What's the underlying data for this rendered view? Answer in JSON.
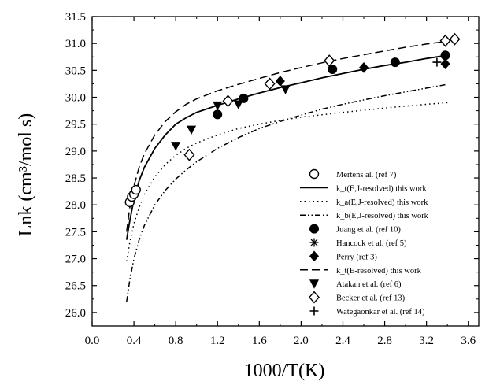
{
  "chart_data": {
    "type": "scatter",
    "xlabel": "1000/T(K)",
    "ylabel": "Lnk (cm³/mol s)",
    "xlim": [
      0.0,
      3.7
    ],
    "ylim": [
      25.75,
      31.5
    ],
    "xticks": [
      "0.0",
      "0.4",
      "0.8",
      "1.2",
      "1.6",
      "2.0",
      "2.4",
      "2.8",
      "3.2",
      "3.6"
    ],
    "yticks": [
      "26.0",
      "26.5",
      "27.0",
      "27.5",
      "28.0",
      "28.5",
      "29.0",
      "29.5",
      "30.0",
      "30.5",
      "31.0",
      "31.5"
    ],
    "legend_position": "center-right",
    "series": [
      {
        "name": "Mertens al. (ref 7)",
        "kind": "points",
        "marker": "open-circle",
        "points": [
          [
            0.36,
            28.05
          ],
          [
            0.38,
            28.15
          ],
          [
            0.4,
            28.2
          ],
          [
            0.42,
            28.28
          ]
        ]
      },
      {
        "name": "k_t(E,J-resolved)  this work",
        "kind": "line",
        "dash": "solid",
        "points": [
          [
            0.33,
            27.35
          ],
          [
            0.36,
            27.7
          ],
          [
            0.4,
            28.1
          ],
          [
            0.45,
            28.45
          ],
          [
            0.5,
            28.7
          ],
          [
            0.6,
            29.05
          ],
          [
            0.7,
            29.3
          ],
          [
            0.8,
            29.5
          ],
          [
            0.9,
            29.62
          ],
          [
            1.0,
            29.72
          ],
          [
            1.2,
            29.85
          ],
          [
            1.4,
            29.97
          ],
          [
            1.6,
            30.08
          ],
          [
            1.8,
            30.18
          ],
          [
            2.0,
            30.27
          ],
          [
            2.2,
            30.36
          ],
          [
            2.4,
            30.44
          ],
          [
            2.6,
            30.52
          ],
          [
            2.8,
            30.59
          ],
          [
            3.0,
            30.65
          ],
          [
            3.2,
            30.72
          ],
          [
            3.4,
            30.78
          ]
        ]
      },
      {
        "name": "k_a(E,J-resolved)  this work",
        "kind": "line",
        "dash": "dotted",
        "points": [
          [
            0.33,
            26.95
          ],
          [
            0.36,
            27.3
          ],
          [
            0.4,
            27.65
          ],
          [
            0.45,
            27.95
          ],
          [
            0.5,
            28.2
          ],
          [
            0.6,
            28.52
          ],
          [
            0.7,
            28.75
          ],
          [
            0.8,
            28.92
          ],
          [
            0.9,
            29.05
          ],
          [
            1.0,
            29.15
          ],
          [
            1.2,
            29.3
          ],
          [
            1.4,
            29.42
          ],
          [
            1.6,
            29.5
          ],
          [
            1.8,
            29.57
          ],
          [
            2.0,
            29.63
          ],
          [
            2.4,
            29.72
          ],
          [
            2.8,
            29.8
          ],
          [
            3.2,
            29.87
          ],
          [
            3.4,
            29.9
          ]
        ]
      },
      {
        "name": "k_b(E,J-resolved)  this work",
        "kind": "line",
        "dash": "dash-dot-dot",
        "points": [
          [
            0.33,
            26.2
          ],
          [
            0.36,
            26.6
          ],
          [
            0.4,
            27.0
          ],
          [
            0.45,
            27.35
          ],
          [
            0.5,
            27.62
          ],
          [
            0.6,
            28.0
          ],
          [
            0.7,
            28.27
          ],
          [
            0.8,
            28.48
          ],
          [
            0.9,
            28.65
          ],
          [
            1.0,
            28.8
          ],
          [
            1.2,
            29.05
          ],
          [
            1.4,
            29.25
          ],
          [
            1.6,
            29.42
          ],
          [
            1.8,
            29.55
          ],
          [
            2.0,
            29.67
          ],
          [
            2.2,
            29.78
          ],
          [
            2.4,
            29.87
          ],
          [
            2.6,
            29.95
          ],
          [
            2.8,
            30.03
          ],
          [
            3.0,
            30.1
          ],
          [
            3.2,
            30.17
          ],
          [
            3.4,
            30.24
          ]
        ]
      },
      {
        "name": "Juang et al. (ref 10)",
        "kind": "points",
        "marker": "filled-circle",
        "points": [
          [
            1.2,
            29.68
          ],
          [
            1.45,
            29.98
          ],
          [
            2.3,
            30.52
          ],
          [
            2.9,
            30.65
          ],
          [
            3.38,
            30.78
          ]
        ]
      },
      {
        "name": "Hancock et al. (ref 5)",
        "kind": "points",
        "marker": "asterisk",
        "points": []
      },
      {
        "name": "Perry (ref 3)",
        "kind": "points",
        "marker": "filled-diamond",
        "points": [
          [
            1.8,
            30.3
          ],
          [
            2.6,
            30.55
          ],
          [
            3.38,
            30.62
          ]
        ]
      },
      {
        "name": "k_t(E-resolved) this work",
        "kind": "line",
        "dash": "dashed",
        "points": [
          [
            0.33,
            27.5
          ],
          [
            0.36,
            27.95
          ],
          [
            0.4,
            28.35
          ],
          [
            0.45,
            28.7
          ],
          [
            0.5,
            28.95
          ],
          [
            0.6,
            29.3
          ],
          [
            0.7,
            29.55
          ],
          [
            0.8,
            29.73
          ],
          [
            0.9,
            29.87
          ],
          [
            1.0,
            29.97
          ],
          [
            1.2,
            30.12
          ],
          [
            1.4,
            30.24
          ],
          [
            1.6,
            30.35
          ],
          [
            1.8,
            30.46
          ],
          [
            2.0,
            30.55
          ],
          [
            2.2,
            30.64
          ],
          [
            2.4,
            30.72
          ],
          [
            2.6,
            30.79
          ],
          [
            2.8,
            30.86
          ],
          [
            3.0,
            30.93
          ],
          [
            3.2,
            30.99
          ],
          [
            3.4,
            31.04
          ]
        ]
      },
      {
        "name": "Atakan et al. (ref 6)",
        "kind": "points",
        "marker": "filled-triangle-down",
        "points": [
          [
            0.8,
            29.1
          ],
          [
            0.95,
            29.4
          ],
          [
            1.2,
            29.85
          ],
          [
            1.4,
            29.87
          ],
          [
            1.85,
            30.15
          ]
        ]
      },
      {
        "name": "Becker et al. (ref 13)",
        "kind": "points",
        "marker": "open-diamond",
        "points": [
          [
            0.93,
            28.93
          ],
          [
            1.3,
            29.93
          ],
          [
            1.7,
            30.25
          ],
          [
            2.27,
            30.68
          ],
          [
            3.38,
            31.05
          ],
          [
            3.47,
            31.08
          ]
        ]
      },
      {
        "name": "Wategaonkar et al. (ref 14)",
        "kind": "points",
        "marker": "plus",
        "points": [
          [
            3.3,
            30.65
          ]
        ]
      }
    ]
  }
}
